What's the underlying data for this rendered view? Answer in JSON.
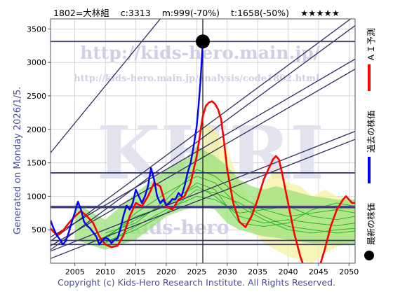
{
  "header": {
    "code": "1802=大林組",
    "c": "c:3313",
    "m": "m:999(-70%)",
    "t": "t:1658(-50%)",
    "stars": "★★★★★"
  },
  "side_left": "Generated on Monday 2026/1/5.",
  "footer": "Copyright (c) Kids-Hero Research Institute. All Rights Reserved.",
  "watermark": {
    "url_big": "http://kids-hero.main.jp/",
    "url_small": "http://kids-hero.main.jp/analysis/code1802.html",
    "big": "KHRI",
    "mid": "kids-hero"
  },
  "legend": {
    "ai": "ＡＩ予測",
    "past": "過去の株価",
    "latest": "最新の株価"
  },
  "colors": {
    "ai": "#ff0000",
    "past": "#0000ff",
    "latest": "#000000",
    "trend": "#2f2f5f",
    "hline": "#3a3a70",
    "band_green": "#9be07a",
    "band_yellow": "#f6f2a0",
    "sim_green": "#20b020"
  },
  "chart_data": {
    "type": "line",
    "xlim": [
      2001,
      2051
    ],
    "ylim": [
      0,
      3650
    ],
    "x_ticks": [
      2005,
      2010,
      2015,
      2020,
      2025,
      2030,
      2035,
      2040,
      2045,
      2050
    ],
    "y_ticks": [
      500,
      1000,
      1500,
      2000,
      2500,
      3000,
      3500
    ],
    "hlines": [
      3313,
      1350,
      850,
      830,
      340,
      280
    ],
    "vline": 2026.0,
    "latest_point": {
      "x": 2026.0,
      "y": 3313
    },
    "trend_lines": [
      {
        "x": [
          2001,
          2051
        ],
        "y": [
          1650,
          7200
        ]
      },
      {
        "x": [
          2001,
          2051
        ],
        "y": [
          200,
          3550
        ]
      },
      {
        "x": [
          2001,
          2051
        ],
        "y": [
          330,
          3700
        ]
      },
      {
        "x": [
          2001,
          2051
        ],
        "y": [
          260,
          2900
        ]
      },
      {
        "x": [
          2001,
          2051
        ],
        "y": [
          390,
          3050
        ]
      },
      {
        "x": [
          2001,
          2051
        ],
        "y": [
          70,
          1850
        ]
      },
      {
        "x": [
          2001,
          2051
        ],
        "y": [
          180,
          1970
        ]
      }
    ],
    "series": [
      {
        "name": "過去の株価",
        "x": [
          2001.0,
          2001.5,
          2002.0,
          2002.5,
          2003.0,
          2003.5,
          2004.0,
          2004.5,
          2005.0,
          2005.5,
          2006.0,
          2006.5,
          2007.0,
          2007.5,
          2008.0,
          2008.5,
          2009.0,
          2009.5,
          2010.0,
          2010.5,
          2011.0,
          2011.5,
          2012.0,
          2012.5,
          2013.0,
          2013.5,
          2014.0,
          2014.5,
          2015.0,
          2015.5,
          2016.0,
          2016.5,
          2017.0,
          2017.5,
          2018.0,
          2018.5,
          2019.0,
          2019.5,
          2020.0,
          2020.5,
          2021.0,
          2021.5,
          2022.0,
          2022.5,
          2023.0,
          2023.5,
          2024.0,
          2024.5,
          2025.0,
          2025.3,
          2025.6,
          2025.8,
          2026.0
        ],
        "y": [
          640,
          520,
          420,
          360,
          280,
          330,
          460,
          620,
          760,
          920,
          800,
          620,
          560,
          520,
          460,
          400,
          280,
          340,
          380,
          360,
          300,
          350,
          370,
          520,
          720,
          860,
          800,
          900,
          1100,
          1000,
          900,
          1000,
          1150,
          1420,
          1250,
          1000,
          900,
          950,
          870,
          900,
          960,
          950,
          1050,
          1000,
          1150,
          1350,
          1500,
          1750,
          2050,
          2350,
          2700,
          3000,
          3313
        ]
      },
      {
        "name": "ＡＩ予測",
        "x": [
          2001.0,
          2002.0,
          2003.0,
          2004.0,
          2005.0,
          2006.0,
          2007.0,
          2008.0,
          2009.0,
          2010.0,
          2011.0,
          2012.0,
          2013.0,
          2014.0,
          2015.0,
          2016.0,
          2017.0,
          2018.0,
          2019.0,
          2020.0,
          2021.0,
          2022.0,
          2023.0,
          2024.0,
          2025.0,
          2026.0,
          2026.5,
          2027.0,
          2027.5,
          2028.0,
          2028.5,
          2029.0,
          2029.5,
          2030.0,
          2031.0,
          2032.0,
          2033.0,
          2034.0,
          2035.0,
          2035.5,
          2036.0,
          2037.0,
          2037.5,
          2038.0,
          2038.5,
          2039.0,
          2040.0,
          2041.0,
          2042.0,
          2043.0,
          2043.5,
          2044.0,
          2045.0,
          2046.0,
          2047.0,
          2048.0,
          2049.0,
          2049.5,
          2050.0,
          2050.5,
          2051.0
        ],
        "y": [
          520,
          420,
          480,
          600,
          700,
          780,
          700,
          600,
          400,
          280,
          240,
          260,
          420,
          700,
          900,
          850,
          1000,
          1200,
          1150,
          850,
          800,
          950,
          1000,
          1200,
          1600,
          2200,
          2350,
          2400,
          2420,
          2380,
          2300,
          2150,
          1800,
          1400,
          900,
          620,
          540,
          700,
          950,
          1100,
          1250,
          1450,
          1550,
          1600,
          1550,
          1350,
          900,
          450,
          100,
          -150,
          -250,
          -200,
          -100,
          200,
          550,
          800,
          950,
          1000,
          950,
          900,
          900
        ]
      }
    ],
    "green_band": {
      "x": [
        2005,
        2010,
        2015,
        2020,
        2023,
        2025,
        2026,
        2028,
        2030,
        2032,
        2034,
        2036,
        2038,
        2040,
        2042,
        2044,
        2046,
        2048,
        2050,
        2051
      ],
      "upper": [
        900,
        650,
        1050,
        1400,
        1550,
        1750,
        1700,
        1600,
        1450,
        1250,
        1150,
        1100,
        1150,
        1100,
        1050,
        1000,
        980,
        950,
        950,
        950
      ],
      "lower": [
        350,
        200,
        350,
        700,
        800,
        850,
        850,
        800,
        600,
        500,
        450,
        400,
        380,
        350,
        320,
        300,
        300,
        280,
        280,
        280
      ]
    },
    "yellow_band": {
      "x": [
        2026,
        2028,
        2030,
        2032,
        2034,
        2036,
        2038,
        2040,
        2042,
        2044,
        2046,
        2048,
        2050,
        2051
      ],
      "upper": [
        2100,
        2000,
        1700,
        1200,
        900,
        1150,
        1450,
        1200,
        1150,
        1000,
        1100,
        1000,
        950,
        950
      ],
      "lower": [
        1100,
        1000,
        900,
        700,
        500,
        300,
        200,
        100,
        50,
        0,
        150,
        250,
        300,
        300
      ]
    },
    "sim_lines": [
      {
        "x": [
          2010,
          2015,
          2020,
          2025,
          2028,
          2032,
          2036,
          2040,
          2044,
          2048,
          2051
        ],
        "y": [
          400,
          650,
          900,
          1150,
          1000,
          700,
          600,
          650,
          600,
          560,
          600
        ]
      },
      {
        "x": [
          2010,
          2015,
          2020,
          2025,
          2028,
          2032,
          2036,
          2040,
          2044,
          2048,
          2051
        ],
        "y": [
          350,
          750,
          1050,
          1300,
          1200,
          850,
          650,
          500,
          450,
          500,
          520
        ]
      },
      {
        "x": [
          2010,
          2015,
          2020,
          2025,
          2028,
          2032,
          2036,
          2040,
          2044,
          2048,
          2051
        ],
        "y": [
          300,
          550,
          800,
          1000,
          950,
          750,
          800,
          850,
          700,
          650,
          700
        ]
      },
      {
        "x": [
          2010,
          2015,
          2020,
          2025,
          2028,
          2032,
          2036,
          2040,
          2044,
          2048,
          2051
        ],
        "y": [
          450,
          600,
          950,
          1400,
          1300,
          1000,
          800,
          700,
          750,
          800,
          750
        ]
      },
      {
        "x": [
          2010,
          2015,
          2020,
          2025,
          2028,
          2032,
          2036,
          2040,
          2044,
          2048,
          2051
        ],
        "y": [
          380,
          700,
          850,
          1200,
          1100,
          600,
          550,
          600,
          800,
          900,
          850
        ]
      },
      {
        "x": [
          2010,
          2015,
          2020,
          2025,
          2028,
          2032,
          2036,
          2040,
          2044,
          2048,
          2051
        ],
        "y": [
          320,
          500,
          750,
          1100,
          1050,
          900,
          700,
          550,
          500,
          450,
          480
        ]
      }
    ]
  }
}
